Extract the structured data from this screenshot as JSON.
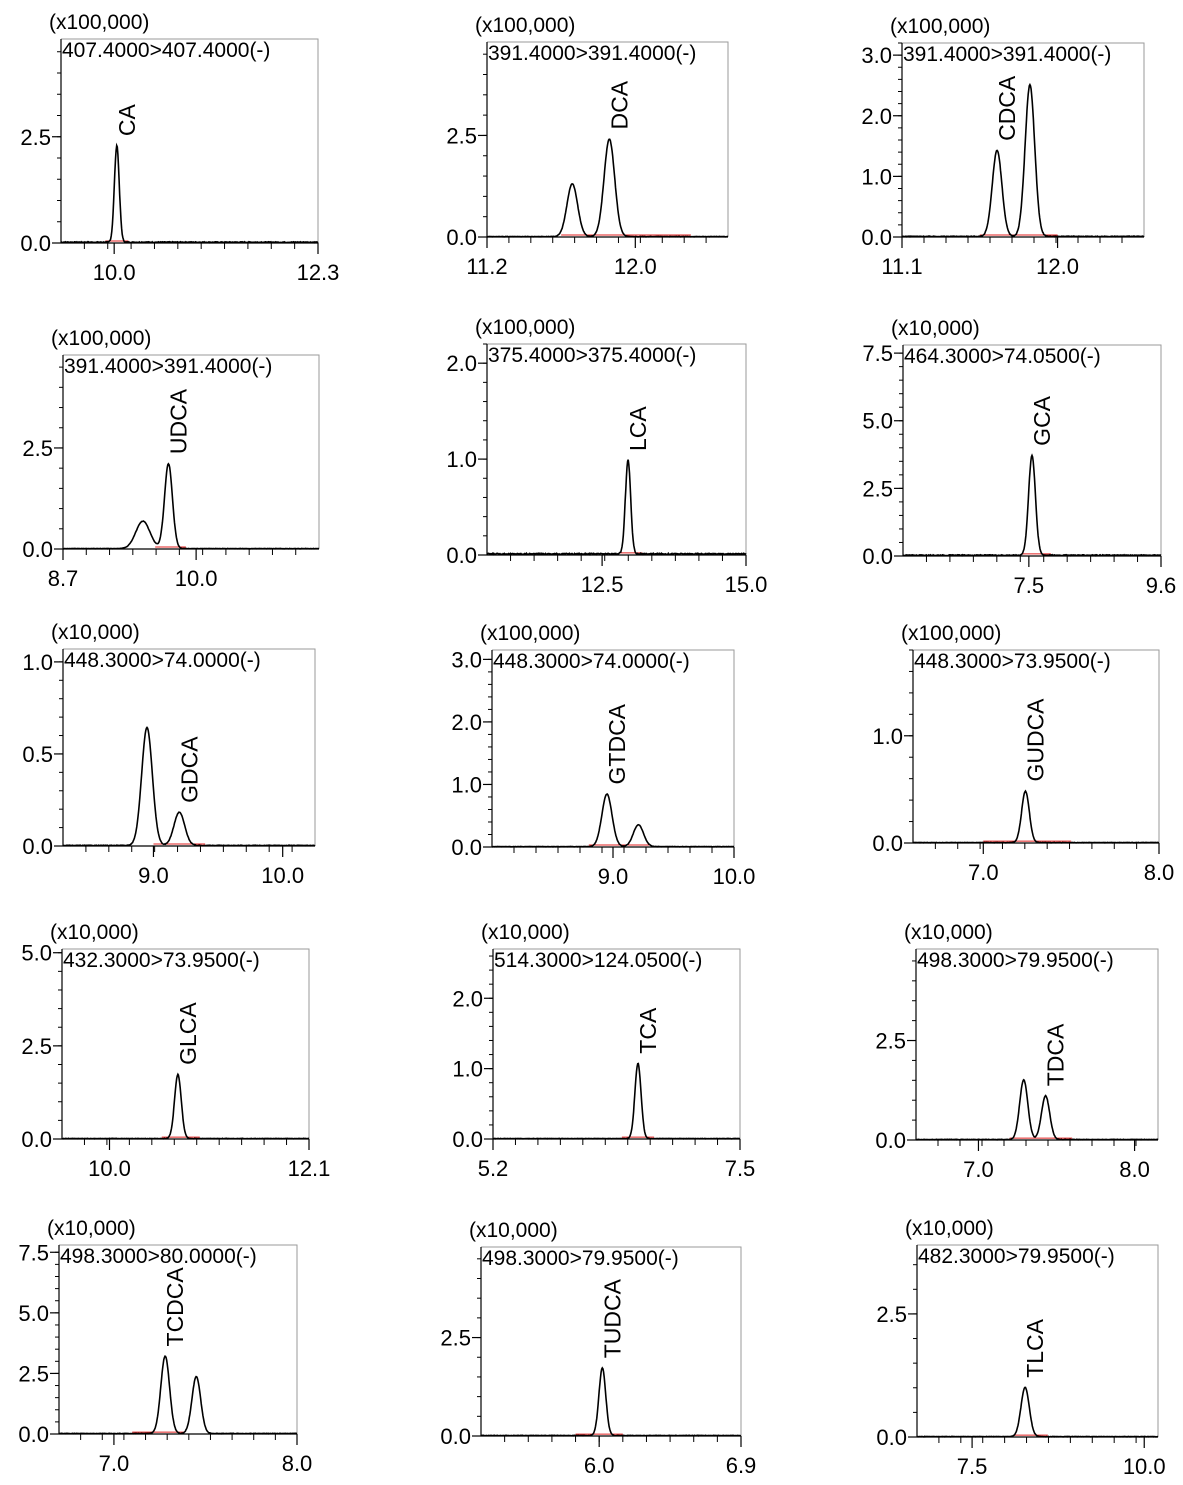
{
  "colors": {
    "trace": "#000000",
    "baseline": "#e02020",
    "axis": "#000000",
    "frame": "#9a9a9a"
  },
  "chart_data": [
    {
      "type": "line",
      "multiplier": "(x100,000)",
      "transition": "407.4000>407.4000(-)",
      "xlim": [
        9.4,
        12.3
      ],
      "ylim": [
        0,
        4.8
      ],
      "xticks": [
        10.0,
        12.3
      ],
      "yticks": [
        0.0,
        2.5
      ],
      "ytick_labels": [
        "0.0",
        "2.5"
      ],
      "xtick_labels": [
        "10.0",
        "12.3"
      ],
      "peaks": [
        {
          "label": "CA",
          "rt": 10.03,
          "height": 2.28,
          "width": 0.018
        }
      ],
      "baseline_range": [
        9.9,
        10.16
      ],
      "noise": 0.02
    },
    {
      "type": "line",
      "multiplier": "(x100,000)",
      "transition": "391.4000>391.4000(-)",
      "xlim": [
        11.2,
        12.5
      ],
      "ylim": [
        0,
        4.8
      ],
      "xticks": [
        11.2,
        12.0
      ],
      "yticks": [
        0.0,
        2.5
      ],
      "ytick_labels": [
        "0.0",
        "2.5"
      ],
      "xtick_labels": [
        "11.2",
        "12.0"
      ],
      "peaks": [
        {
          "label": "",
          "rt": 11.66,
          "height": 1.3,
          "width": 0.03
        },
        {
          "label": "DCA",
          "rt": 11.86,
          "height": 2.4,
          "width": 0.03
        }
      ],
      "baseline_range": [
        11.6,
        12.3
      ],
      "noise": 0.01
    },
    {
      "type": "line",
      "multiplier": "(x100,000)",
      "transition": "391.4000>391.4000(-)",
      "xlim": [
        11.1,
        12.5
      ],
      "ylim": [
        0,
        3.2
      ],
      "xticks": [
        11.1,
        12.0
      ],
      "yticks": [
        0.0,
        1.0,
        2.0,
        3.0
      ],
      "ytick_labels": [
        "0.0",
        "1.0",
        "2.0",
        "3.0"
      ],
      "xtick_labels": [
        "11.1",
        "12.0"
      ],
      "peaks": [
        {
          "label": "CDCA",
          "rt": 11.65,
          "height": 1.42,
          "width": 0.028
        },
        {
          "label": "",
          "rt": 11.84,
          "height": 2.5,
          "width": 0.028
        }
      ],
      "baseline_range": [
        11.55,
        12.0
      ],
      "noise": 0.01
    },
    {
      "type": "line",
      "multiplier": "(x100,000)",
      "transition": "391.4000>391.4000(-)",
      "xlim": [
        8.7,
        11.2
      ],
      "ylim": [
        0,
        4.8
      ],
      "xticks": [
        8.7,
        10.0
      ],
      "yticks": [
        0.0,
        2.5
      ],
      "ytick_labels": [
        "0.0",
        "2.5"
      ],
      "xtick_labels": [
        "8.7",
        "10.0"
      ],
      "peaks": [
        {
          "label": "",
          "rt": 9.48,
          "height": 0.68,
          "width": 0.05
        },
        {
          "label": "UDCA",
          "rt": 9.73,
          "height": 2.1,
          "width": 0.028
        }
      ],
      "baseline_range": [
        9.6,
        9.9
      ],
      "noise": 0.01
    },
    {
      "type": "line",
      "multiplier": "(x100,000)",
      "transition": "375.4000>375.4000(-)",
      "xlim": [
        10.5,
        15.0
      ],
      "ylim": [
        0,
        2.2
      ],
      "xticks": [
        12.5,
        15.0
      ],
      "yticks": [
        0.0,
        1.0,
        2.0
      ],
      "ytick_labels": [
        "0.0",
        "1.0",
        "2.0"
      ],
      "xtick_labels": [
        "12.5",
        "15.0"
      ],
      "peaks": [
        {
          "label": "LCA",
          "rt": 12.95,
          "height": 0.98,
          "width": 0.022
        }
      ],
      "baseline_range": [
        12.8,
        13.2
      ],
      "noise": 0.012
    },
    {
      "type": "line",
      "multiplier": "(x10,000)",
      "transition": "464.3000>74.0500(-)",
      "xlim": [
        5.5,
        9.6
      ],
      "ylim": [
        0,
        7.8
      ],
      "xticks": [
        7.5,
        9.6
      ],
      "yticks": [
        0.0,
        2.5,
        5.0,
        7.5
      ],
      "ytick_labels": [
        "0.0",
        "2.5",
        "5.0",
        "7.5"
      ],
      "xtick_labels": [
        "7.5",
        "9.6"
      ],
      "peaks": [
        {
          "label": "GCA",
          "rt": 7.55,
          "height": 3.7,
          "width": 0.028
        }
      ],
      "baseline_range": [
        7.4,
        7.85
      ],
      "noise": 0.03
    },
    {
      "type": "line",
      "multiplier": "(x10,000)",
      "transition": "448.3000>74.0000(-)",
      "xlim": [
        8.3,
        10.25
      ],
      "ylim": [
        0,
        1.07
      ],
      "xticks": [
        9.0,
        10.0
      ],
      "yticks": [
        0.0,
        0.5,
        1.0
      ],
      "ytick_labels": [
        "0.0",
        "0.5",
        "1.0"
      ],
      "xtick_labels": [
        "9.0",
        "10.0"
      ],
      "peaks": [
        {
          "label": "",
          "rt": 8.95,
          "height": 0.64,
          "width": 0.035
        },
        {
          "label": "GDCA",
          "rt": 9.2,
          "height": 0.18,
          "width": 0.035
        }
      ],
      "baseline_range": [
        9.0,
        9.4
      ],
      "noise": 0.003
    },
    {
      "type": "line",
      "multiplier": "(x100,000)",
      "transition": "448.3000>74.0000(-)",
      "xlim": [
        8.0,
        10.0
      ],
      "ylim": [
        0,
        3.15
      ],
      "xticks": [
        9.0,
        10.0
      ],
      "yticks": [
        0.0,
        1.0,
        2.0,
        3.0
      ],
      "ytick_labels": [
        "0.0",
        "1.0",
        "2.0",
        "3.0"
      ],
      "xtick_labels": [
        "9.0",
        "10.0"
      ],
      "peaks": [
        {
          "label": "GTDCA",
          "rt": 8.95,
          "height": 0.84,
          "width": 0.035
        },
        {
          "label": "",
          "rt": 9.21,
          "height": 0.35,
          "width": 0.035
        }
      ],
      "baseline_range": [
        8.8,
        9.3
      ],
      "noise": 0.006
    },
    {
      "type": "line",
      "multiplier": "(x100,000)",
      "transition": "448.3000>73.9500(-)",
      "xlim": [
        6.6,
        8.0
      ],
      "ylim": [
        0,
        1.8
      ],
      "xticks": [
        7.0,
        8.0
      ],
      "yticks": [
        0.0,
        1.0
      ],
      "ytick_labels": [
        "0.0",
        "1.0"
      ],
      "xtick_labels": [
        "7.0",
        "8.0"
      ],
      "peaks": [
        {
          "label": "GUDCA",
          "rt": 7.24,
          "height": 0.48,
          "width": 0.022
        }
      ],
      "baseline_range": [
        7.0,
        7.5
      ],
      "noise": 0.004
    },
    {
      "type": "line",
      "multiplier": "(x10,000)",
      "transition": "432.3000>73.9500(-)",
      "xlim": [
        9.5,
        12.1
      ],
      "ylim": [
        0,
        5.1
      ],
      "xticks": [
        10.0,
        12.1
      ],
      "yticks": [
        0.0,
        2.5,
        5.0
      ],
      "ytick_labels": [
        "0.0",
        "2.5",
        "5.0"
      ],
      "xtick_labels": [
        "10.0",
        "12.1"
      ],
      "peaks": [
        {
          "label": "GLCA",
          "rt": 10.72,
          "height": 1.72,
          "width": 0.025
        }
      ],
      "baseline_range": [
        10.55,
        10.95
      ],
      "noise": 0.012
    },
    {
      "type": "line",
      "multiplier": "(x10,000)",
      "transition": "514.3000>124.0500(-)",
      "xlim": [
        5.2,
        7.5
      ],
      "ylim": [
        0,
        2.7
      ],
      "xticks": [
        5.2,
        7.5
      ],
      "yticks": [
        0.0,
        1.0,
        2.0
      ],
      "ytick_labels": [
        "0.0",
        "1.0",
        "2.0"
      ],
      "xtick_labels": [
        "5.2",
        "7.5"
      ],
      "peaks": [
        {
          "label": "TCA",
          "rt": 6.55,
          "height": 1.07,
          "width": 0.022
        }
      ],
      "baseline_range": [
        6.4,
        6.7
      ],
      "noise": 0.006
    },
    {
      "type": "line",
      "multiplier": "(x10,000)",
      "transition": "498.3000>79.9500(-)",
      "xlim": [
        6.6,
        8.15
      ],
      "ylim": [
        0,
        4.8
      ],
      "xticks": [
        7.0,
        8.0
      ],
      "yticks": [
        0.0,
        2.5
      ],
      "ytick_labels": [
        "0.0",
        "2.5"
      ],
      "xtick_labels": [
        "7.0",
        "8.0"
      ],
      "peaks": [
        {
          "label": "",
          "rt": 7.29,
          "height": 1.5,
          "width": 0.025
        },
        {
          "label": "TDCA",
          "rt": 7.43,
          "height": 1.1,
          "width": 0.025
        }
      ],
      "baseline_range": [
        7.2,
        7.6
      ],
      "noise": 0.012
    },
    {
      "type": "line",
      "multiplier": "(x10,000)",
      "transition": "498.3000>80.0000(-)",
      "xlim": [
        6.7,
        8.0
      ],
      "ylim": [
        0,
        7.8
      ],
      "xticks": [
        7.0,
        8.0
      ],
      "yticks": [
        0.0,
        2.5,
        5.0,
        7.5
      ],
      "ytick_labels": [
        "0.0",
        "2.5",
        "5.0",
        "7.5"
      ],
      "xtick_labels": [
        "7.0",
        "8.0"
      ],
      "peaks": [
        {
          "label": "TCDCA",
          "rt": 7.28,
          "height": 3.2,
          "width": 0.025
        },
        {
          "label": "",
          "rt": 7.45,
          "height": 2.35,
          "width": 0.025
        }
      ],
      "baseline_range": [
        7.1,
        7.38
      ],
      "noise": 0.02
    },
    {
      "type": "line",
      "multiplier": "(x10,000)",
      "transition": "498.3000>79.9500(-)",
      "xlim": [
        5.25,
        6.9
      ],
      "ylim": [
        0,
        4.8
      ],
      "xticks": [
        6.0,
        6.9
      ],
      "yticks": [
        0.0,
        2.5
      ],
      "ytick_labels": [
        "0.0",
        "2.5"
      ],
      "xtick_labels": [
        "6.0",
        "6.9"
      ],
      "peaks": [
        {
          "label": "TUDCA",
          "rt": 6.02,
          "height": 1.72,
          "width": 0.02
        }
      ],
      "baseline_range": [
        5.85,
        6.15
      ],
      "noise": 0.012
    },
    {
      "type": "line",
      "multiplier": "(x10,000)",
      "transition": "482.3000>79.9500(-)",
      "xlim": [
        6.7,
        10.2
      ],
      "ylim": [
        0,
        3.9
      ],
      "xticks": [
        7.5,
        10.0
      ],
      "yticks": [
        0.0,
        2.5
      ],
      "ytick_labels": [
        "0.0",
        "2.5"
      ],
      "xtick_labels": [
        "7.5",
        "10.0"
      ],
      "peaks": [
        {
          "label": "TLCA",
          "rt": 8.27,
          "height": 1.0,
          "width": 0.035
        }
      ],
      "baseline_range": [
        8.1,
        8.6
      ],
      "noise": 0.008
    }
  ]
}
